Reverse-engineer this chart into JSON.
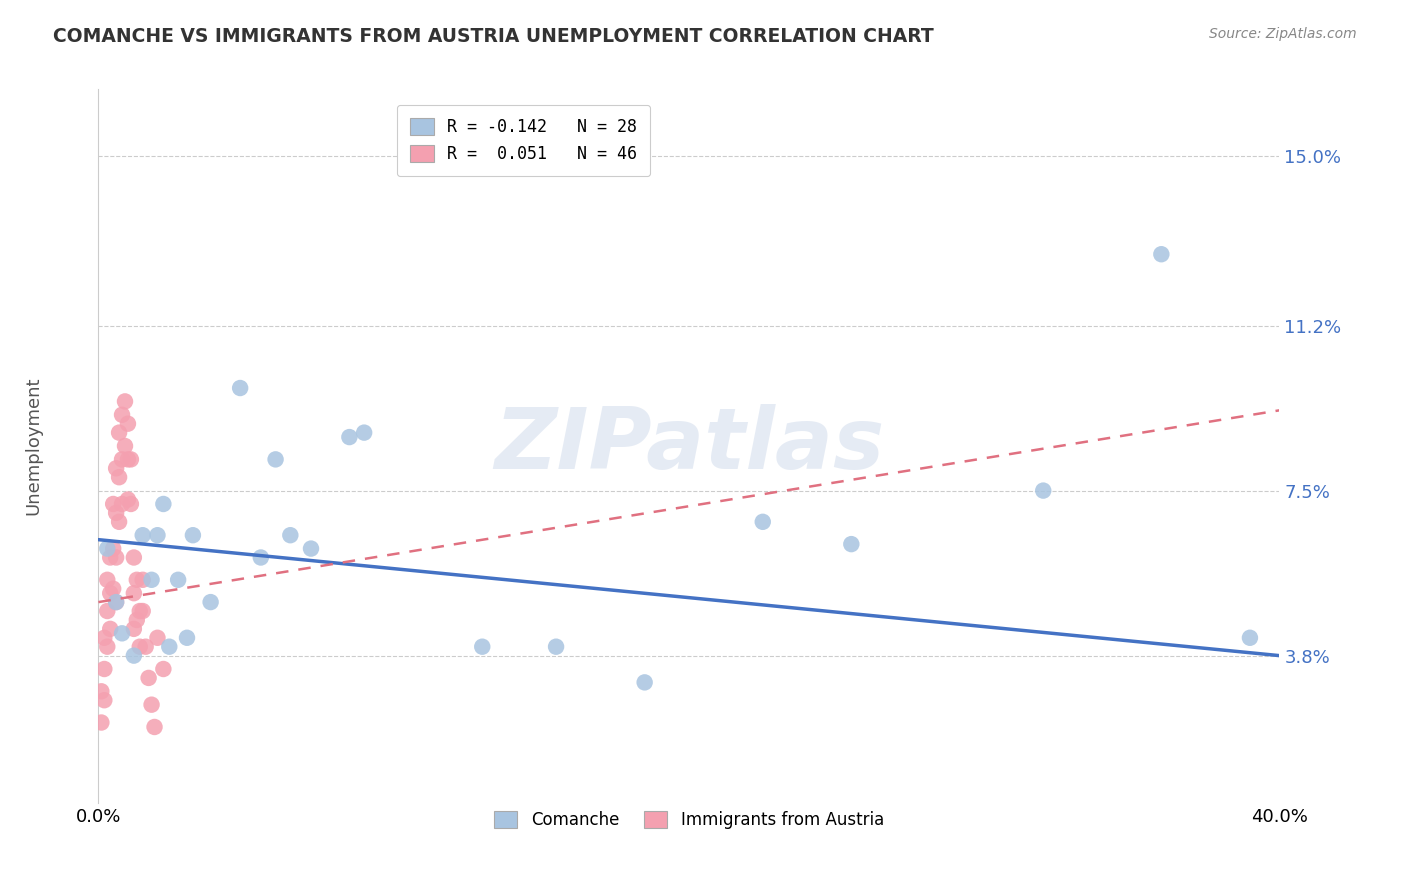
{
  "title": "COMANCHE VS IMMIGRANTS FROM AUSTRIA UNEMPLOYMENT CORRELATION CHART",
  "source": "Source: ZipAtlas.com",
  "ylabel": "Unemployment",
  "ytick_labels": [
    "3.8%",
    "7.5%",
    "11.2%",
    "15.0%"
  ],
  "ytick_values": [
    0.038,
    0.075,
    0.112,
    0.15
  ],
  "xmin": 0.0,
  "xmax": 0.4,
  "ymin": 0.005,
  "ymax": 0.165,
  "legend_line1_r": "-0.142",
  "legend_line1_n": "28",
  "legend_line2_r": "0.051",
  "legend_line2_n": "46",
  "blue_color": "#a8c4e0",
  "pink_color": "#f4a0b0",
  "blue_line_color": "#4472c4",
  "pink_line_color": "#e07080",
  "watermark": "ZIPatlas",
  "blue_trend_x0": 0.0,
  "blue_trend_y0": 0.064,
  "blue_trend_x1": 0.4,
  "blue_trend_y1": 0.038,
  "pink_trend_x0": 0.0,
  "pink_trend_y0": 0.05,
  "pink_trend_x1": 0.4,
  "pink_trend_y1": 0.093,
  "comanche_x": [
    0.003,
    0.006,
    0.008,
    0.012,
    0.015,
    0.018,
    0.02,
    0.022,
    0.024,
    0.027,
    0.03,
    0.032,
    0.038,
    0.048,
    0.055,
    0.06,
    0.065,
    0.072,
    0.085,
    0.09,
    0.13,
    0.155,
    0.185,
    0.225,
    0.255,
    0.32,
    0.36,
    0.39
  ],
  "comanche_y": [
    0.062,
    0.05,
    0.043,
    0.038,
    0.065,
    0.055,
    0.065,
    0.072,
    0.04,
    0.055,
    0.042,
    0.065,
    0.05,
    0.098,
    0.06,
    0.082,
    0.065,
    0.062,
    0.087,
    0.088,
    0.04,
    0.04,
    0.032,
    0.068,
    0.063,
    0.075,
    0.128,
    0.042
  ],
  "austria_x": [
    0.001,
    0.001,
    0.002,
    0.002,
    0.002,
    0.003,
    0.003,
    0.003,
    0.004,
    0.004,
    0.004,
    0.005,
    0.005,
    0.005,
    0.006,
    0.006,
    0.006,
    0.006,
    0.007,
    0.007,
    0.007,
    0.008,
    0.008,
    0.008,
    0.009,
    0.009,
    0.01,
    0.01,
    0.01,
    0.011,
    0.011,
    0.012,
    0.012,
    0.012,
    0.013,
    0.013,
    0.014,
    0.014,
    0.015,
    0.015,
    0.016,
    0.017,
    0.018,
    0.019,
    0.02,
    0.022
  ],
  "austria_y": [
    0.03,
    0.023,
    0.042,
    0.035,
    0.028,
    0.055,
    0.048,
    0.04,
    0.06,
    0.052,
    0.044,
    0.072,
    0.062,
    0.053,
    0.08,
    0.07,
    0.06,
    0.05,
    0.088,
    0.078,
    0.068,
    0.092,
    0.082,
    0.072,
    0.095,
    0.085,
    0.09,
    0.082,
    0.073,
    0.082,
    0.072,
    0.06,
    0.052,
    0.044,
    0.055,
    0.046,
    0.048,
    0.04,
    0.055,
    0.048,
    0.04,
    0.033,
    0.027,
    0.022,
    0.042,
    0.035
  ]
}
